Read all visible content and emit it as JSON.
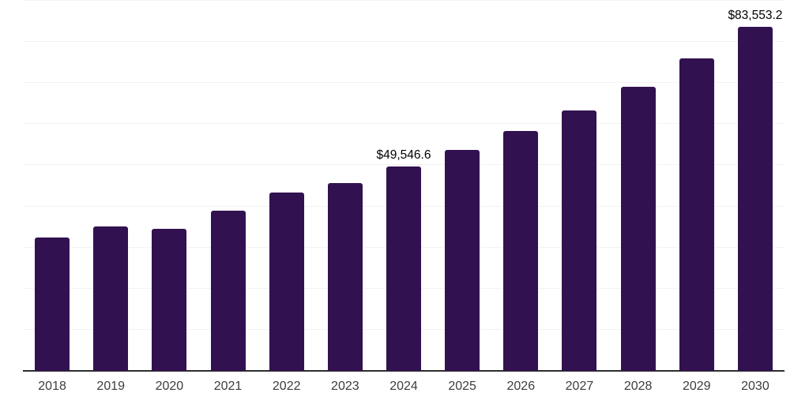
{
  "page": {
    "background_color": "#ffffff"
  },
  "chart_data": {
    "type": "bar",
    "title": "",
    "xlabel": "",
    "ylabel": "",
    "categories": [
      "2018",
      "2019",
      "2020",
      "2021",
      "2022",
      "2023",
      "2024",
      "2025",
      "2026",
      "2027",
      "2028",
      "2029",
      "2030"
    ],
    "values": [
      32400,
      35000,
      34500,
      38900,
      43300,
      45600,
      49546.6,
      53600,
      58200,
      63200,
      68900,
      75800,
      83553.2
    ],
    "data_labels": {
      "2024": "$49,546.6",
      "2030": "$83,553.2"
    },
    "ylim": [
      0,
      90000
    ],
    "grid": true,
    "grid_step": 10000,
    "legend_position": "none",
    "bar_color": "#321150",
    "grid_color": "#f2f2f2",
    "axis_line_color": "#2e2e2e",
    "tick_label_color": "#3d3d3d",
    "data_label_color": "#000000"
  }
}
